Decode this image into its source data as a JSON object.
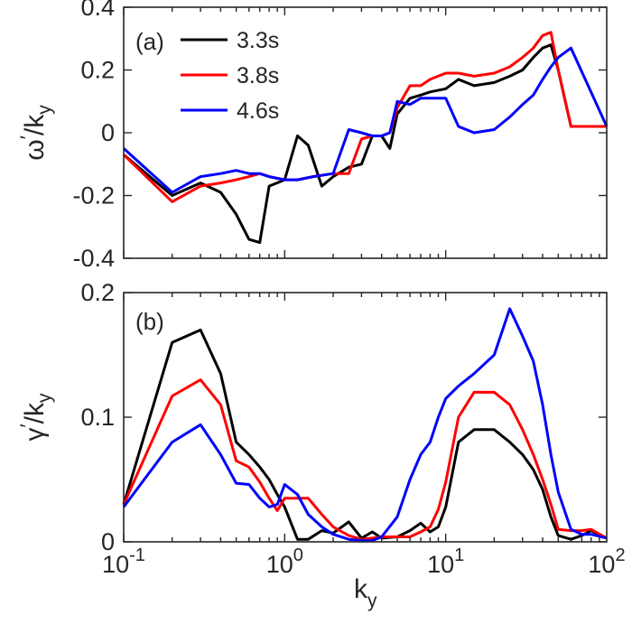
{
  "chart_data": [
    {
      "type": "line",
      "panel_label": "(a)",
      "ylabel_main": "ω",
      "ylabel_prime": "′",
      "ylabel_denom": "/k",
      "ylabel_sub": "y",
      "xscale": "log",
      "xlim": [
        0.1,
        100
      ],
      "ylim": [
        -0.4,
        0.4
      ],
      "yticks": [
        -0.4,
        -0.2,
        0,
        0.2,
        0.4
      ],
      "ytick_labels": [
        "-0.4",
        "-0.2",
        "0",
        "0.2",
        "0.4"
      ],
      "legend_position": "top-left",
      "series": [
        {
          "name": "3.3s",
          "color": "#000000",
          "x": [
            0.1,
            0.2,
            0.3,
            0.4,
            0.5,
            0.6,
            0.7,
            0.8,
            1.0,
            1.2,
            1.4,
            1.7,
            2.0,
            2.5,
            3.0,
            3.5,
            4.0,
            4.5,
            5.0,
            6.0,
            7.0,
            8.0,
            10,
            12,
            15,
            20,
            25,
            30,
            35,
            40,
            45,
            50,
            60,
            100
          ],
          "y": [
            -0.07,
            -0.2,
            -0.16,
            -0.19,
            -0.26,
            -0.34,
            -0.35,
            -0.17,
            -0.15,
            -0.01,
            -0.04,
            -0.17,
            -0.14,
            -0.11,
            -0.1,
            -0.01,
            -0.01,
            -0.05,
            0.06,
            0.11,
            0.12,
            0.13,
            0.14,
            0.17,
            0.15,
            0.16,
            0.18,
            0.2,
            0.24,
            0.27,
            0.28,
            0.2,
            0.02,
            0.02
          ]
        },
        {
          "name": "3.8s",
          "color": "#ff0000",
          "x": [
            0.1,
            0.2,
            0.3,
            0.4,
            0.5,
            0.6,
            0.7,
            0.8,
            1.0,
            1.2,
            1.5,
            2.0,
            2.5,
            3.0,
            3.5,
            4.0,
            4.5,
            5.0,
            6.0,
            7.0,
            8.0,
            10,
            12,
            15,
            20,
            25,
            30,
            35,
            40,
            45,
            50,
            60,
            100
          ],
          "y": [
            -0.07,
            -0.22,
            -0.17,
            -0.16,
            -0.15,
            -0.14,
            -0.13,
            -0.14,
            -0.15,
            -0.15,
            -0.14,
            -0.13,
            -0.13,
            -0.02,
            -0.01,
            -0.01,
            0.0,
            0.08,
            0.15,
            0.15,
            0.17,
            0.19,
            0.19,
            0.18,
            0.19,
            0.21,
            0.24,
            0.27,
            0.31,
            0.32,
            0.2,
            0.02,
            0.02
          ]
        },
        {
          "name": "4.6s",
          "color": "#0000ff",
          "x": [
            0.1,
            0.2,
            0.3,
            0.4,
            0.5,
            0.6,
            0.7,
            0.8,
            1.0,
            1.2,
            1.5,
            2.0,
            2.5,
            3.0,
            3.5,
            4.0,
            4.5,
            5.0,
            6.0,
            7.0,
            8.0,
            10,
            12,
            15,
            20,
            25,
            30,
            35,
            40,
            45,
            50,
            60,
            100
          ],
          "y": [
            -0.05,
            -0.19,
            -0.14,
            -0.13,
            -0.12,
            -0.13,
            -0.13,
            -0.14,
            -0.15,
            -0.15,
            -0.14,
            -0.13,
            0.01,
            0.0,
            -0.01,
            -0.01,
            0.0,
            0.1,
            0.09,
            0.11,
            0.11,
            0.11,
            0.02,
            0.0,
            0.01,
            0.05,
            0.09,
            0.12,
            0.17,
            0.21,
            0.24,
            0.27,
            0.02
          ]
        }
      ]
    },
    {
      "type": "line",
      "panel_label": "(b)",
      "ylabel_main": "γ",
      "ylabel_prime": "′",
      "ylabel_denom": "/k",
      "ylabel_sub": "y",
      "xlabel_main": "k",
      "xlabel_sub": "y",
      "xscale": "log",
      "xlim": [
        0.1,
        100
      ],
      "ylim": [
        0,
        0.2
      ],
      "yticks": [
        0,
        0.1,
        0.2
      ],
      "ytick_labels": [
        "0",
        "0.1",
        "0.2"
      ],
      "xtick_base": "10",
      "xtick_exponents": [
        "-1",
        "0",
        "1",
        "2"
      ],
      "series": [
        {
          "name": "3.3s",
          "color": "#000000",
          "x": [
            0.1,
            0.2,
            0.3,
            0.4,
            0.5,
            0.6,
            0.7,
            0.8,
            0.9,
            1.0,
            1.2,
            1.4,
            1.7,
            2.0,
            2.5,
            3.0,
            3.5,
            4.0,
            5.0,
            6.0,
            7.0,
            8.0,
            9.0,
            10,
            12,
            15,
            20,
            25,
            30,
            35,
            40,
            45,
            50,
            60,
            70,
            80,
            100
          ],
          "y": [
            0.03,
            0.16,
            0.17,
            0.135,
            0.08,
            0.07,
            0.06,
            0.05,
            0.038,
            0.028,
            0.002,
            0.002,
            0.009,
            0.007,
            0.016,
            0.003,
            0.008,
            0.003,
            0.004,
            0.009,
            0.015,
            0.008,
            0.012,
            0.028,
            0.08,
            0.09,
            0.09,
            0.08,
            0.07,
            0.058,
            0.042,
            0.02,
            0.005,
            0.002,
            0.005,
            0.009,
            0.003
          ]
        },
        {
          "name": "3.8s",
          "color": "#ff0000",
          "x": [
            0.1,
            0.2,
            0.3,
            0.4,
            0.5,
            0.6,
            0.7,
            0.8,
            0.9,
            1.0,
            1.2,
            1.4,
            1.7,
            2.0,
            2.5,
            3.0,
            3.5,
            4.0,
            5.0,
            6.0,
            7.0,
            8.0,
            9.0,
            10,
            12,
            15,
            20,
            25,
            30,
            35,
            40,
            45,
            50,
            60,
            70,
            80,
            100
          ],
          "y": [
            0.03,
            0.117,
            0.13,
            0.11,
            0.065,
            0.06,
            0.048,
            0.035,
            0.025,
            0.035,
            0.035,
            0.035,
            0.022,
            0.012,
            0.005,
            0.002,
            0.003,
            0.004,
            0.004,
            0.004,
            0.008,
            0.012,
            0.026,
            0.048,
            0.1,
            0.12,
            0.12,
            0.11,
            0.09,
            0.07,
            0.05,
            0.03,
            0.01,
            0.009,
            0.009,
            0.01,
            0.003
          ]
        },
        {
          "name": "4.6s",
          "color": "#0000ff",
          "x": [
            0.1,
            0.2,
            0.3,
            0.4,
            0.5,
            0.6,
            0.7,
            0.8,
            0.9,
            1.0,
            1.2,
            1.4,
            1.7,
            2.0,
            2.5,
            3.0,
            3.5,
            4.0,
            5.0,
            6.0,
            7.0,
            8.0,
            9.0,
            10,
            12,
            15,
            20,
            25,
            30,
            35,
            40,
            45,
            50,
            60,
            70,
            80,
            100
          ],
          "y": [
            0.028,
            0.08,
            0.094,
            0.07,
            0.047,
            0.046,
            0.035,
            0.028,
            0.03,
            0.046,
            0.038,
            0.022,
            0.012,
            0.006,
            0.002,
            0.001,
            0.001,
            0.004,
            0.02,
            0.05,
            0.07,
            0.08,
            0.1,
            0.115,
            0.125,
            0.135,
            0.15,
            0.187,
            0.165,
            0.145,
            0.11,
            0.07,
            0.04,
            0.01,
            0.006,
            0.006,
            0.003
          ]
        }
      ]
    }
  ]
}
